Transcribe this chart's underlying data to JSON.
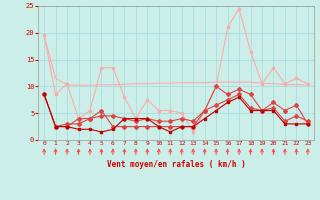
{
  "x": [
    0,
    1,
    2,
    3,
    4,
    5,
    6,
    7,
    8,
    9,
    10,
    11,
    12,
    13,
    14,
    15,
    16,
    17,
    18,
    19,
    20,
    21,
    22,
    23
  ],
  "line1": [
    19.5,
    11.5,
    10.3,
    10.2,
    10.2,
    10.3,
    10.3,
    10.4,
    10.5,
    10.5,
    10.6,
    10.6,
    10.7,
    10.7,
    10.7,
    10.8,
    10.8,
    10.8,
    10.8,
    10.6,
    10.5,
    10.4,
    10.3,
    10.3
  ],
  "line2": [
    19.5,
    8.5,
    10.5,
    4.0,
    5.5,
    13.5,
    13.5,
    8.0,
    4.0,
    7.5,
    5.5,
    5.5,
    5.0,
    1.5,
    5.5,
    10.0,
    21.0,
    24.5,
    16.5,
    10.5,
    13.5,
    10.5,
    11.5,
    10.5
  ],
  "line3": [
    8.5,
    2.5,
    3.0,
    3.0,
    4.0,
    5.5,
    2.5,
    2.5,
    2.5,
    2.5,
    2.5,
    2.5,
    2.5,
    2.5,
    5.5,
    10.0,
    8.5,
    9.5,
    8.5,
    5.5,
    7.0,
    5.5,
    6.5,
    3.0
  ],
  "line4": [
    8.5,
    2.5,
    2.5,
    2.0,
    2.0,
    1.5,
    2.0,
    4.0,
    4.0,
    4.0,
    2.5,
    1.5,
    2.5,
    2.5,
    4.0,
    5.5,
    7.0,
    8.0,
    5.5,
    5.5,
    5.5,
    3.0,
    3.0,
    3.0
  ],
  "line5": [
    8.5,
    2.5,
    2.5,
    4.0,
    4.0,
    4.5,
    4.5,
    4.0,
    3.5,
    4.0,
    3.5,
    3.5,
    4.0,
    3.5,
    5.5,
    6.5,
    7.5,
    8.5,
    6.0,
    5.5,
    6.0,
    3.5,
    4.5,
    3.5
  ],
  "xlim": [
    -0.5,
    23.5
  ],
  "ylim": [
    0,
    25
  ],
  "yticks": [
    0,
    5,
    10,
    15,
    20,
    25
  ],
  "xticks": [
    0,
    1,
    2,
    3,
    4,
    5,
    6,
    7,
    8,
    9,
    10,
    11,
    12,
    13,
    14,
    15,
    16,
    17,
    18,
    19,
    20,
    21,
    22,
    23
  ],
  "xlabel": "Vent moyen/en rafales ( km/h )",
  "bg_color": "#cceee8",
  "grid_color": "#aadddd",
  "color_line1": "#ffaaaa",
  "color_line2": "#ffaaaa",
  "color_line3": "#dd4444",
  "color_line4": "#bb0000",
  "color_line5": "#dd4444",
  "arrow_color": "#ff4444",
  "xlabel_color": "#cc0000",
  "tick_color": "#cc0000"
}
